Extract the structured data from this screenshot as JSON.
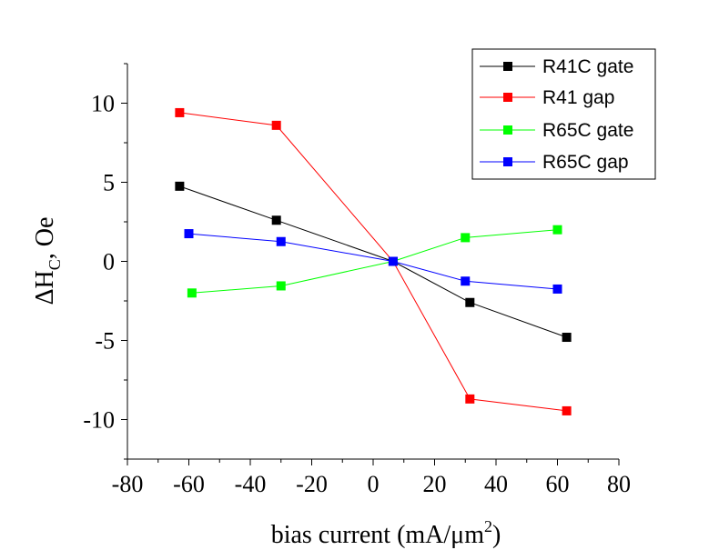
{
  "chart_data": {
    "type": "line",
    "xlabel": "bias current (mA/μm",
    "xlabel_superscript": "2",
    "xlabel_close": ")",
    "ylabel": "ΔH",
    "ylabel_subscript": "C",
    "ylabel_rest": ", Oe",
    "xlim": [
      -80,
      80
    ],
    "ylim": [
      -12.5,
      12.5
    ],
    "xticks": [
      -80,
      -60,
      -40,
      -20,
      0,
      20,
      40,
      60,
      80
    ],
    "yticks": [
      10,
      5,
      0,
      -5,
      -10
    ],
    "legend_position": "top-right",
    "grid": false,
    "series": [
      {
        "name": "R41C gate",
        "color": "#000000",
        "marker": "square",
        "x": [
          -63,
          -31.5,
          6.5,
          31.5,
          63
        ],
        "y": [
          4.75,
          2.6,
          0.0,
          -2.6,
          -4.8
        ]
      },
      {
        "name": "R41 gap",
        "color": "#ff0000",
        "marker": "square",
        "x": [
          -63,
          -31.5,
          6.5,
          31.5,
          63
        ],
        "y": [
          9.4,
          8.6,
          0.0,
          -8.7,
          -9.45
        ]
      },
      {
        "name": "R65C gate",
        "color": "#00ff00",
        "marker": "square",
        "x": [
          -59,
          -30,
          6.5,
          30,
          60
        ],
        "y": [
          -2.0,
          -1.55,
          0.0,
          1.5,
          2.0
        ]
      },
      {
        "name": "R65C gap",
        "color": "#0000ff",
        "marker": "square",
        "x": [
          -60,
          -30,
          6.5,
          30,
          60
        ],
        "y": [
          1.75,
          1.25,
          0.0,
          -1.25,
          -1.75
        ]
      }
    ]
  }
}
